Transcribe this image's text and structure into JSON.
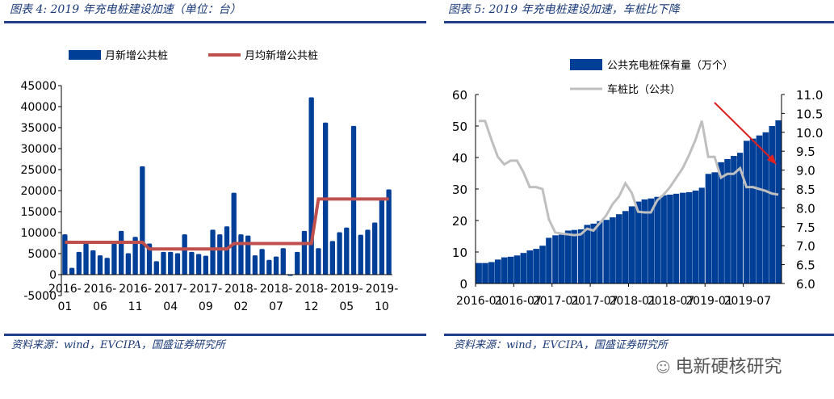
{
  "left": {
    "title": "图表 4:  2019 年充电桩建设加速（单位：台）",
    "source": "资料来源：wind，EVCIPA，国盛证券研究所"
  },
  "right": {
    "title": "图表 5:   2019 年充电桩建设加速，车桩比下降",
    "source": "资料来源：wind，EVCIPA，国盛证券研究所"
  },
  "watermark": "电新硬核研究",
  "colors": {
    "bar": "#003f98",
    "avg_line": "#c0504d",
    "ratio_line": "#bfbfbf",
    "arrow": "#e02020",
    "rule": "#1f3f8a"
  },
  "chart_data": [
    {
      "type": "bar+line",
      "ylim": [
        -5000,
        45000
      ],
      "yticks": [
        -5000,
        0,
        5000,
        10000,
        15000,
        20000,
        25000,
        30000,
        35000,
        40000,
        45000
      ],
      "xtick_labels": [
        [
          "2016-",
          "01"
        ],
        [
          "2016-",
          "06"
        ],
        [
          "2016-",
          "11"
        ],
        [
          "2017-",
          "04"
        ],
        [
          "2017-",
          "09"
        ],
        [
          "2018-",
          "02"
        ],
        [
          "2018-",
          "07"
        ],
        [
          "2018-",
          "12"
        ],
        [
          "2019-",
          "05"
        ],
        [
          "2019-",
          "10"
        ]
      ],
      "legend_placement": "top",
      "x_start": "2016-01",
      "x_end": "2019-11",
      "series": [
        {
          "name": "月新增公共桩",
          "kind": "bar",
          "values": [
            9600,
            1600,
            5400,
            7400,
            5800,
            4600,
            4000,
            7400,
            10400,
            5100,
            9000,
            25800,
            7400,
            3200,
            5400,
            5400,
            5100,
            9600,
            5400,
            4900,
            4500,
            10700,
            9600,
            11500,
            19500,
            9600,
            9300,
            4600,
            6100,
            3500,
            4300,
            6300,
            -300,
            5400,
            10400,
            42200,
            6300,
            36200,
            8000,
            10100,
            11200,
            35400,
            9500,
            10700,
            12400,
            17900,
            20300
          ]
        },
        {
          "name": "月均新增公共桩",
          "kind": "line",
          "values": [
            7700,
            7700,
            7700,
            7700,
            7700,
            7700,
            7700,
            7700,
            7700,
            7700,
            7700,
            7700,
            6100,
            6100,
            6100,
            6100,
            6100,
            6100,
            6100,
            6100,
            6100,
            6100,
            6100,
            6100,
            7400,
            7400,
            7400,
            7400,
            7400,
            7400,
            7400,
            7400,
            7400,
            7400,
            7400,
            7400,
            18000,
            18000,
            18000,
            18000,
            18000,
            18000,
            18000,
            18000,
            18000,
            18000,
            18000
          ]
        }
      ]
    },
    {
      "type": "bar+line",
      "ylim_left": [
        0,
        60
      ],
      "ylim_right": [
        6.0,
        11.0
      ],
      "yticks_left": [
        0,
        10,
        20,
        30,
        40,
        50,
        60
      ],
      "yticks_right": [
        "6.0",
        "6.5",
        "7.0",
        "7.5",
        "8.0",
        "8.5",
        "9.0",
        "9.5",
        "10.0",
        "10.5",
        "11.0"
      ],
      "xtick_labels": [
        "2016-01",
        "2016-07",
        "2017-01",
        "2017-07",
        "2018-01",
        "2018-07",
        "2019-01",
        "2019-07"
      ],
      "legend_placement": "top",
      "x_start": "2016-01",
      "x_end": "2019-12",
      "series": [
        {
          "name": "公共充电桩保有量（万个）",
          "kind": "bar",
          "axis": "left",
          "values": [
            6.5,
            6.5,
            6.8,
            7.6,
            8.3,
            8.5,
            8.9,
            9.7,
            10.5,
            11,
            12,
            14.5,
            15.3,
            15.5,
            16.8,
            17,
            17.2,
            18.6,
            19,
            19.8,
            20.2,
            21,
            22,
            23,
            24.5,
            26,
            26.7,
            27,
            27.5,
            28,
            28.2,
            28.5,
            28.8,
            29,
            29.5,
            30.4,
            34.8,
            35.3,
            38.5,
            39.5,
            40.5,
            41.5,
            45.3,
            46,
            47,
            48,
            50,
            51.8
          ]
        },
        {
          "name": "车桩比（公共）",
          "kind": "line",
          "axis": "right",
          "values": [
            10.3,
            10.3,
            9.8,
            9.35,
            9.15,
            9.25,
            9.25,
            8.95,
            8.55,
            8.55,
            8.5,
            7.7,
            7.35,
            7.32,
            7.3,
            7.28,
            7.3,
            7.45,
            7.4,
            7.6,
            7.8,
            8.1,
            8.3,
            8.65,
            8.4,
            7.9,
            7.88,
            7.88,
            8.2,
            8.35,
            8.55,
            8.8,
            9.05,
            9.4,
            9.8,
            10.3,
            9.35,
            9.35,
            8.8,
            8.9,
            8.9,
            9.05,
            8.55,
            8.55,
            8.5,
            8.45,
            8.38,
            8.35
          ]
        }
      ],
      "annotation": "red-arrow-down"
    }
  ]
}
